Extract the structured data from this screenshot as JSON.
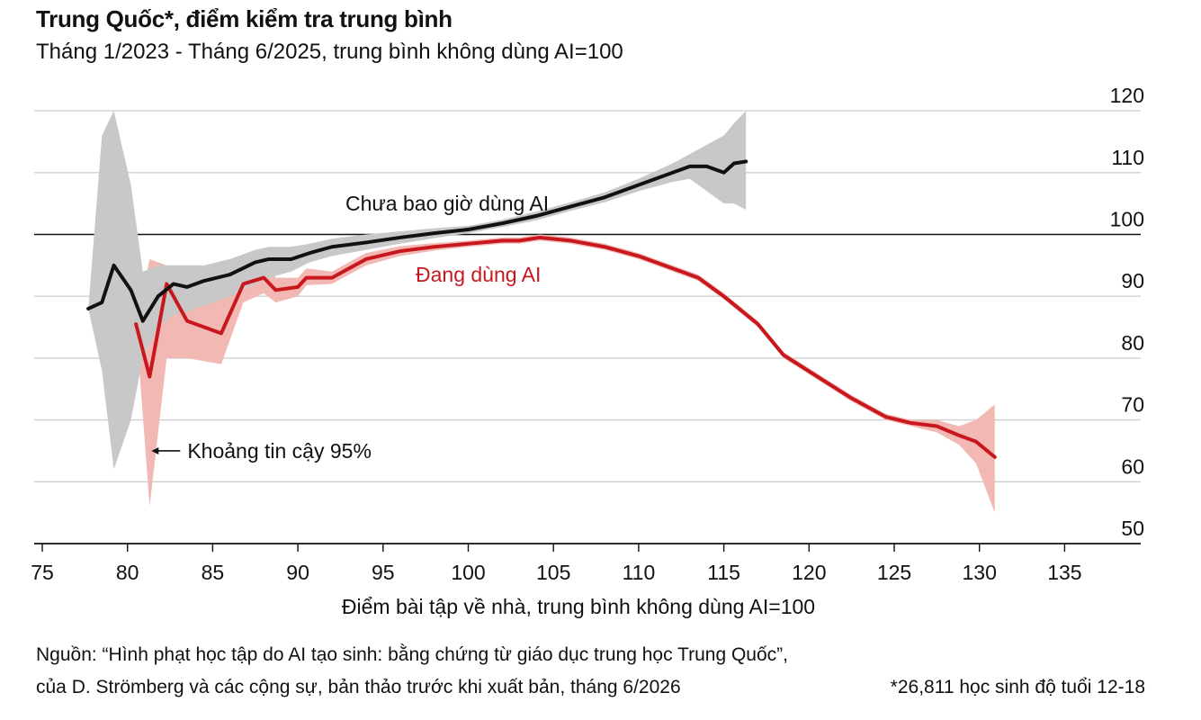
{
  "header": {
    "title": "Trung Quốc*, điểm kiểm tra trung bình",
    "subtitle": "Tháng 1/2023 - Tháng 6/2025, trung bình không dùng AI=100"
  },
  "footer": {
    "source_line1": "Nguồn: “Hình phạt học tập do AI tạo sinh: bằng chứng từ giáo dục trung học Trung Quốc”,",
    "source_line2": "của D. Strömberg và các cộng sự, bản thảo trước khi xuất bản, tháng 6/2026",
    "note": "*26,811 học sinh độ tuổi 12-18"
  },
  "chart_data": {
    "type": "line",
    "title": "Trung Quốc*, điểm kiểm tra trung bình",
    "subtitle": "Tháng 1/2023 - Tháng 6/2025, trung bình không dùng AI=100",
    "xlabel": "Điểm bài tập về nhà, trung bình không dùng AI=100",
    "ylabel": "",
    "xlim": [
      74,
      141
    ],
    "ylim": [
      50,
      121
    ],
    "xticks": [
      75,
      80,
      85,
      90,
      95,
      100,
      105,
      110,
      115,
      120,
      125,
      130,
      135
    ],
    "yticks": [
      50,
      60,
      70,
      80,
      90,
      100,
      110,
      120
    ],
    "reference_line": 100,
    "grid": "horizontal",
    "colors": {
      "never": "#111111",
      "never_band": "#c8c8c8",
      "using": "#c8181e",
      "using_band": "#f2b8b4",
      "grid": "#cfcfcf"
    },
    "annotations": [
      {
        "text": "Chưa bao giờ dùng AI",
        "series": "never"
      },
      {
        "text": "Đang dùng AI",
        "series": "using"
      },
      {
        "text": "Khoảng tin cậy 95%",
        "target_x": 81.3,
        "target_y": 65
      }
    ],
    "series": [
      {
        "name": "Chưa bao giờ dùng AI",
        "x": [
          77.7,
          78.5,
          79.2,
          80.2,
          80.9,
          81.8,
          82.7,
          83.5,
          84.5,
          86,
          87.5,
          88.3,
          89.6,
          90.7,
          92,
          94,
          96,
          98,
          100,
          102,
          104,
          106,
          108,
          110,
          112,
          113,
          114,
          115,
          115.6,
          116.3
        ],
        "y": [
          88,
          89,
          95,
          91,
          86,
          90,
          92,
          91.5,
          92.5,
          93.5,
          95.5,
          96,
          96,
          97,
          98,
          98.7,
          99.5,
          100.2,
          100.8,
          101.8,
          103,
          104.5,
          106,
          108,
          110,
          111,
          111,
          110,
          111.5,
          111.8
        ],
        "ci_lower": [
          88,
          78,
          62,
          70,
          80,
          85,
          87,
          87.5,
          88.5,
          90,
          92,
          93,
          94,
          95.5,
          96.5,
          97.5,
          98.5,
          99.4,
          100.2,
          101.2,
          102.3,
          103.8,
          105.2,
          107,
          108.5,
          109,
          107,
          105,
          105,
          104
        ],
        "ci_upper": [
          88,
          116,
          120,
          108,
          94,
          95,
          95,
          95,
          95,
          96,
          97.5,
          98,
          98,
          98.5,
          99.3,
          100,
          100.5,
          101,
          101.4,
          102.4,
          103.7,
          105.2,
          106.8,
          109,
          111.5,
          113,
          114.5,
          116,
          118,
          120
        ]
      },
      {
        "name": "Đang dùng AI",
        "x": [
          80.5,
          81.3,
          82.3,
          83.5,
          85.5,
          86.8,
          88,
          88.7,
          90,
          90.5,
          92,
          94,
          96,
          98,
          100,
          102,
          103,
          104.2,
          106,
          108,
          110,
          112,
          113.5,
          115,
          117,
          118.5,
          120.5,
          122.5,
          124.5,
          126,
          127.5,
          128.8,
          129.8,
          130.9
        ],
        "y": [
          85.5,
          77,
          92,
          86,
          84,
          92,
          93,
          91,
          91.5,
          93,
          93,
          96,
          97.3,
          98,
          98.5,
          99,
          99,
          99.5,
          99,
          98,
          96.5,
          94.5,
          93,
          90,
          85.5,
          80.5,
          77,
          73.5,
          70.5,
          69.5,
          69,
          67.5,
          66.5,
          64
        ],
        "ci_lower": [
          85.5,
          56,
          80,
          80,
          79,
          89,
          90.5,
          89,
          90,
          91.8,
          92,
          95,
          96.5,
          97.4,
          98,
          98.5,
          98.5,
          99,
          98.5,
          97.5,
          96,
          94,
          92.5,
          89.5,
          85,
          80,
          76.5,
          73,
          70,
          69,
          68,
          66,
          63,
          55
        ],
        "ci_upper": [
          85.5,
          96,
          95,
          92,
          90,
          95,
          95.5,
          93,
          93,
          94.5,
          94,
          97,
          98.1,
          98.6,
          99,
          99.5,
          99.5,
          100,
          99.5,
          98.5,
          97,
          95,
          93.5,
          90.5,
          86,
          81,
          77.5,
          74,
          71,
          70,
          70,
          69,
          70,
          72.5
        ]
      }
    ]
  }
}
